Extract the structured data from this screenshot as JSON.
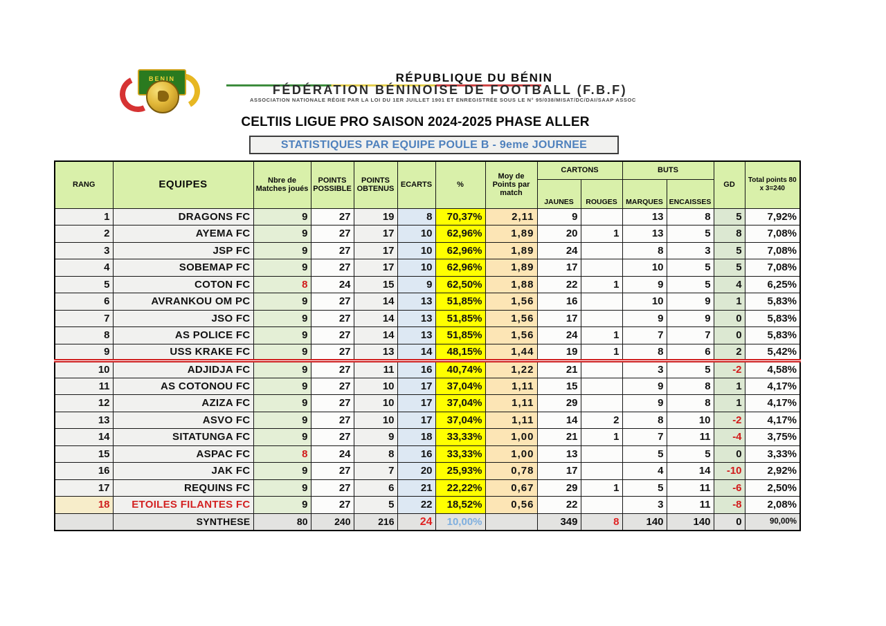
{
  "header": {
    "country": "RÉPUBLIQUE DU BÉNIN",
    "federation": "FÉDÉRATION BÉNINOISE DE FOOTBALL (F.B.F)",
    "association_line": "ASSOCIATION NATIONALE RÉGIE PAR LA LOI DU 1ER JUILLET 1901 ET ENREGISTRÉE SOUS LE N° 95/038/MISAT/DC/DAI/SAAP ASSOC",
    "logo_text_top": "BENIN",
    "logo_text_bottom": "FBF",
    "flag_colors": [
      "#3d8c3d",
      "#e5cf4e",
      "#cf4444"
    ]
  },
  "title": "CELTIIS LIGUE  PRO SAISON 2024-2025 PHASE ALLER",
  "subtitle": "STATISTIQUES  PAR EQUIPE POULE B - 9eme JOURNEE",
  "colors": {
    "header_green": "#d9f0aa",
    "matches_col_green": "#e4efd6",
    "ecarts_col_blue": "#dde8f3",
    "pct_col_yellow": "#ffff00",
    "pct_text_green": "#94b832",
    "moy_col_tan": "#fce5b5",
    "gd_col_green": "#dce8d2",
    "alert_red": "#d11a1a",
    "subtitle_blue": "#4f81bd",
    "synthese_gray": "#e3e3e1",
    "relegation_rank_bg": "#f7edca"
  },
  "table": {
    "columns": {
      "rang": "RANG",
      "equipes": "EQUIPES",
      "matches": "Nbre de Matches joués",
      "possible": "POINTS POSSIBLE",
      "obtenus": "POINTS OBTENUS",
      "ecarts": "ECARTS",
      "pct": "%",
      "moy": "Moy de Points  par match",
      "cartons": "CARTONS",
      "jaunes": "JAUNES",
      "rouges": "ROUGES",
      "buts": "BUTS",
      "marques": "MARQUES",
      "encaisses": "ENCAISSES",
      "gd": "GD",
      "total": "Total points 80 x 3=240"
    },
    "teams": [
      {
        "rank": "1",
        "name": "DRAGONS FC",
        "matches": "9",
        "possible": "27",
        "obtenus": "19",
        "ecarts": "8",
        "pct": "70,37%",
        "moy": "2,11",
        "jaunes": "9",
        "rouges": "",
        "marques": "13",
        "encaisses": "8",
        "gd": "5",
        "total": "7,92%",
        "matches_red": false,
        "relegation": false,
        "separator_after": false
      },
      {
        "rank": "2",
        "name": "AYEMA  FC",
        "matches": "9",
        "possible": "27",
        "obtenus": "17",
        "ecarts": "10",
        "pct": "62,96%",
        "moy": "1,89",
        "jaunes": "20",
        "rouges": "1",
        "marques": "13",
        "encaisses": "5",
        "gd": "8",
        "total": "7,08%",
        "matches_red": false,
        "relegation": false,
        "separator_after": false
      },
      {
        "rank": "3",
        "name": "JSP  FC",
        "matches": "9",
        "possible": "27",
        "obtenus": "17",
        "ecarts": "10",
        "pct": "62,96%",
        "moy": "1,89",
        "jaunes": "24",
        "rouges": "",
        "marques": "8",
        "encaisses": "3",
        "gd": "5",
        "total": "7,08%",
        "matches_red": false,
        "relegation": false,
        "separator_after": false
      },
      {
        "rank": "4",
        "name": "SOBEMAP  FC",
        "matches": "9",
        "possible": "27",
        "obtenus": "17",
        "ecarts": "10",
        "pct": "62,96%",
        "moy": "1,89",
        "jaunes": "17",
        "rouges": "",
        "marques": "10",
        "encaisses": "5",
        "gd": "5",
        "total": "7,08%",
        "matches_red": false,
        "relegation": false,
        "separator_after": false
      },
      {
        "rank": "5",
        "name": "COTON FC",
        "matches": "8",
        "possible": "24",
        "obtenus": "15",
        "ecarts": "9",
        "pct": "62,50%",
        "moy": "1,88",
        "jaunes": "22",
        "rouges": "1",
        "marques": "9",
        "encaisses": "5",
        "gd": "4",
        "total": "6,25%",
        "matches_red": true,
        "relegation": false,
        "separator_after": false
      },
      {
        "rank": "6",
        "name": "AVRANKOU OM PC",
        "matches": "9",
        "possible": "27",
        "obtenus": "14",
        "ecarts": "13",
        "pct": "51,85%",
        "moy": "1,56",
        "jaunes": "16",
        "rouges": "",
        "marques": "10",
        "encaisses": "9",
        "gd": "1",
        "total": "5,83%",
        "matches_red": false,
        "relegation": false,
        "separator_after": false
      },
      {
        "rank": "7",
        "name": "JSO FC",
        "matches": "9",
        "possible": "27",
        "obtenus": "14",
        "ecarts": "13",
        "pct": "51,85%",
        "moy": "1,56",
        "jaunes": "17",
        "rouges": "",
        "marques": "9",
        "encaisses": "9",
        "gd": "0",
        "total": "5,83%",
        "matches_red": false,
        "relegation": false,
        "separator_after": false
      },
      {
        "rank": "8",
        "name": "AS POLICE FC",
        "matches": "9",
        "possible": "27",
        "obtenus": "14",
        "ecarts": "13",
        "pct": "51,85%",
        "moy": "1,56",
        "jaunes": "24",
        "rouges": "1",
        "marques": "7",
        "encaisses": "7",
        "gd": "0",
        "total": "5,83%",
        "matches_red": false,
        "relegation": false,
        "separator_after": false
      },
      {
        "rank": "9",
        "name": "USS KRAKE FC",
        "matches": "9",
        "possible": "27",
        "obtenus": "13",
        "ecarts": "14",
        "pct": "48,15%",
        "moy": "1,44",
        "jaunes": "19",
        "rouges": "1",
        "marques": "8",
        "encaisses": "6",
        "gd": "2",
        "total": "5,42%",
        "matches_red": false,
        "relegation": false,
        "separator_after": true
      },
      {
        "rank": "10",
        "name": "ADJIDJA FC",
        "matches": "9",
        "possible": "27",
        "obtenus": "11",
        "ecarts": "16",
        "pct": "40,74%",
        "moy": "1,22",
        "jaunes": "21",
        "rouges": "",
        "marques": "3",
        "encaisses": "5",
        "gd": "-2",
        "total": "4,58%",
        "matches_red": false,
        "relegation": false,
        "separator_after": false
      },
      {
        "rank": "11",
        "name": "AS COTONOU FC",
        "matches": "9",
        "possible": "27",
        "obtenus": "10",
        "ecarts": "17",
        "pct": "37,04%",
        "moy": "1,11",
        "jaunes": "15",
        "rouges": "",
        "marques": "9",
        "encaisses": "8",
        "gd": "1",
        "total": "4,17%",
        "matches_red": false,
        "relegation": false,
        "separator_after": false
      },
      {
        "rank": "12",
        "name": "AZIZA FC",
        "matches": "9",
        "possible": "27",
        "obtenus": "10",
        "ecarts": "17",
        "pct": "37,04%",
        "moy": "1,11",
        "jaunes": "29",
        "rouges": "",
        "marques": "9",
        "encaisses": "8",
        "gd": "1",
        "total": "4,17%",
        "matches_red": false,
        "relegation": false,
        "separator_after": false
      },
      {
        "rank": "13",
        "name": "ASVO  FC",
        "matches": "9",
        "possible": "27",
        "obtenus": "10",
        "ecarts": "17",
        "pct": "37,04%",
        "moy": "1,11",
        "jaunes": "14",
        "rouges": "2",
        "marques": "8",
        "encaisses": "10",
        "gd": "-2",
        "total": "4,17%",
        "matches_red": false,
        "relegation": false,
        "separator_after": false
      },
      {
        "rank": "14",
        "name": "SITATUNGA  FC",
        "matches": "9",
        "possible": "27",
        "obtenus": "9",
        "ecarts": "18",
        "pct": "33,33%",
        "moy": "1,00",
        "jaunes": "21",
        "rouges": "1",
        "marques": "7",
        "encaisses": "11",
        "gd": "-4",
        "total": "3,75%",
        "matches_red": false,
        "relegation": false,
        "separator_after": false
      },
      {
        "rank": "15",
        "name": "ASPAC  FC",
        "matches": "8",
        "possible": "24",
        "obtenus": "8",
        "ecarts": "16",
        "pct": "33,33%",
        "moy": "1,00",
        "jaunes": "13",
        "rouges": "",
        "marques": "5",
        "encaisses": "5",
        "gd": "0",
        "total": "3,33%",
        "matches_red": true,
        "relegation": false,
        "separator_after": false
      },
      {
        "rank": "16",
        "name": "JAK FC",
        "matches": "9",
        "possible": "27",
        "obtenus": "7",
        "ecarts": "20",
        "pct": "25,93%",
        "moy": "0,78",
        "jaunes": "17",
        "rouges": "",
        "marques": "4",
        "encaisses": "14",
        "gd": "-10",
        "total": "2,92%",
        "matches_red": false,
        "relegation": false,
        "separator_after": false
      },
      {
        "rank": "17",
        "name": "REQUINS FC",
        "matches": "9",
        "possible": "27",
        "obtenus": "6",
        "ecarts": "21",
        "pct": "22,22%",
        "moy": "0,67",
        "jaunes": "29",
        "rouges": "1",
        "marques": "5",
        "encaisses": "11",
        "gd": "-6",
        "total": "2,50%",
        "matches_red": false,
        "relegation": false,
        "separator_after": false
      },
      {
        "rank": "18",
        "name": "ETOILES FILANTES FC",
        "matches": "9",
        "possible": "27",
        "obtenus": "5",
        "ecarts": "22",
        "pct": "18,52%",
        "moy": "0,56",
        "jaunes": "22",
        "rouges": "",
        "marques": "3",
        "encaisses": "11",
        "gd": "-8",
        "total": "2,08%",
        "matches_red": false,
        "relegation": true,
        "separator_after": false
      }
    ],
    "synthese": {
      "rank": "",
      "name": "SYNTHESE",
      "matches": "80",
      "possible": "240",
      "obtenus": "216",
      "ecarts": "24",
      "pct": "10,00%",
      "moy": "",
      "jaunes": "349",
      "rouges": "8",
      "marques": "140",
      "encaisses": "140",
      "gd": "0",
      "total": "90,00%"
    }
  }
}
